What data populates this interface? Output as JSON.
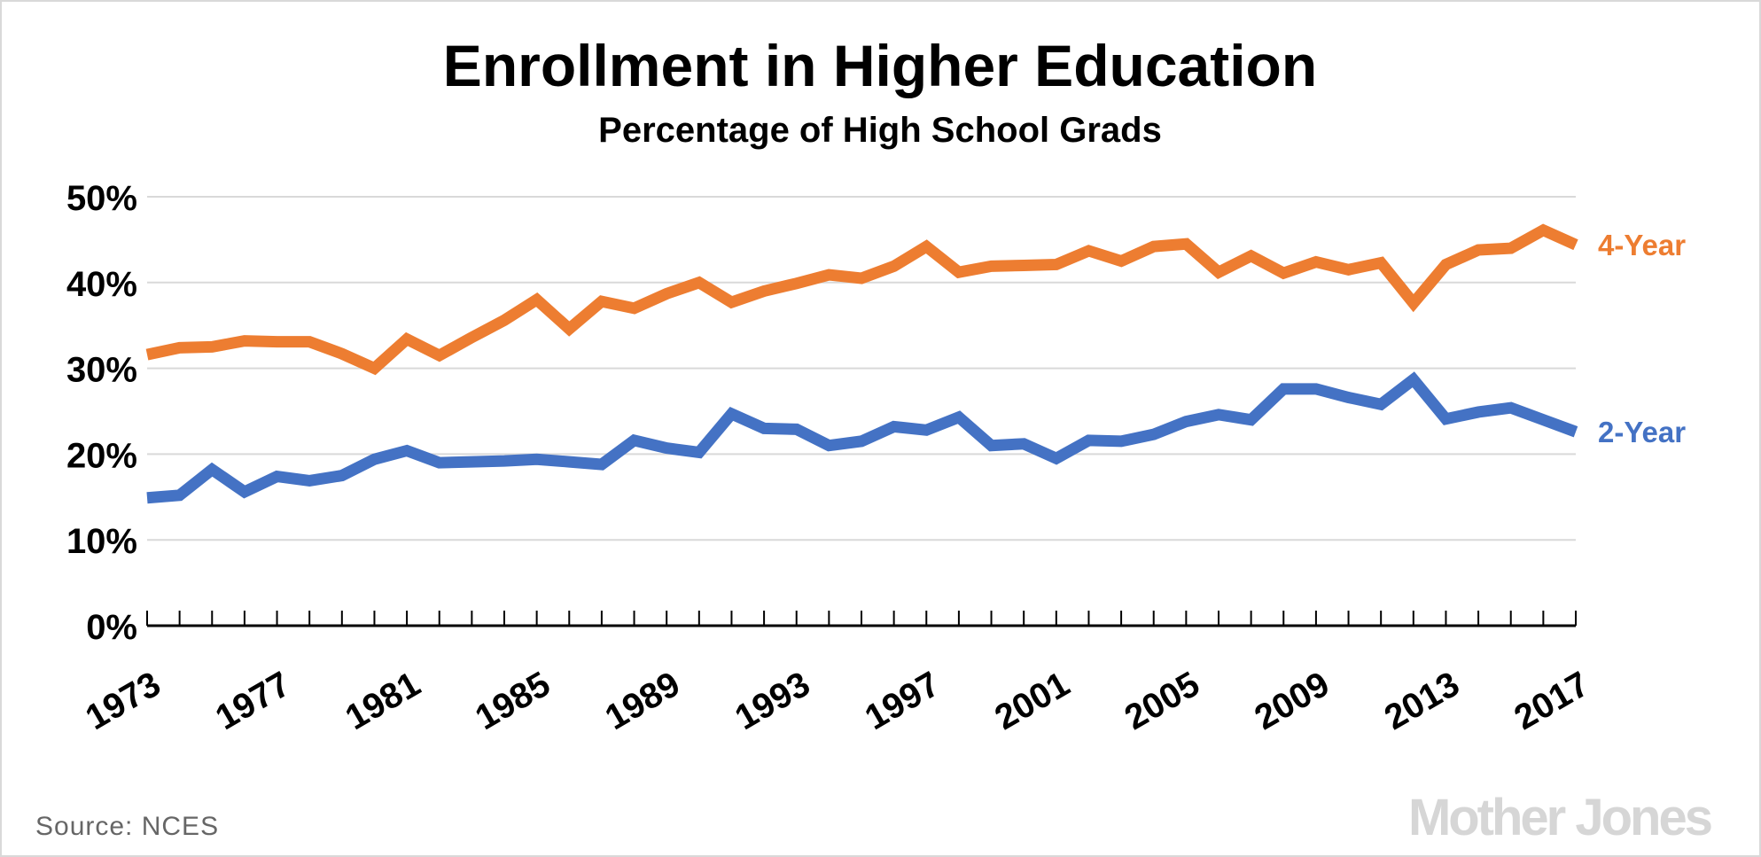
{
  "chart_data": {
    "type": "line",
    "title": "Enrollment in Higher Education",
    "subtitle": "Percentage of High School Grads",
    "xlabel": "",
    "ylabel": "",
    "ylim": [
      0,
      50
    ],
    "yticks": [
      "0%",
      "10%",
      "20%",
      "30%",
      "40%",
      "50%"
    ],
    "ytick_values": [
      0,
      10,
      20,
      30,
      40,
      50
    ],
    "xticks": [
      "1973",
      "1977",
      "1981",
      "1985",
      "1989",
      "1993",
      "1997",
      "2001",
      "2005",
      "2009",
      "2013",
      "2017"
    ],
    "grid": true,
    "x": [
      1973,
      1974,
      1975,
      1976,
      1977,
      1978,
      1979,
      1980,
      1981,
      1982,
      1983,
      1984,
      1985,
      1986,
      1987,
      1988,
      1989,
      1990,
      1991,
      1992,
      1993,
      1994,
      1995,
      1996,
      1997,
      1998,
      1999,
      2000,
      2001,
      2002,
      2003,
      2004,
      2005,
      2006,
      2007,
      2008,
      2009,
      2010,
      2011,
      2012,
      2013,
      2014,
      2015,
      2016,
      2017
    ],
    "series": [
      {
        "name": "4-Year",
        "color": "#ed7d31",
        "values": [
          31.6,
          32.4,
          32.5,
          33.2,
          33.1,
          33.1,
          31.7,
          30.0,
          33.4,
          31.5,
          33.6,
          35.6,
          38.0,
          34.6,
          37.8,
          37.0,
          38.7,
          40.0,
          37.7,
          39.0,
          39.9,
          40.9,
          40.5,
          41.9,
          44.2,
          41.2,
          41.9,
          42.0,
          42.1,
          43.7,
          42.5,
          44.2,
          44.5,
          41.2,
          43.1,
          41.1,
          42.4,
          41.5,
          42.3,
          37.6,
          42.1,
          43.8,
          44.0,
          46.1,
          44.4
        ]
      },
      {
        "name": "2-Year",
        "color": "#4472c4",
        "values": [
          14.9,
          15.2,
          18.2,
          15.6,
          17.4,
          16.9,
          17.5,
          19.4,
          20.4,
          19.0,
          19.1,
          19.2,
          19.4,
          19.1,
          18.8,
          21.6,
          20.7,
          20.2,
          24.7,
          23.0,
          22.9,
          21.0,
          21.5,
          23.2,
          22.8,
          24.3,
          21.0,
          21.2,
          19.5,
          21.6,
          21.5,
          22.3,
          23.8,
          24.6,
          24.0,
          27.6,
          27.6,
          26.6,
          25.8,
          28.7,
          24.1,
          24.9,
          25.4,
          24.0,
          22.6
        ]
      }
    ],
    "legend": "direct-labels-right",
    "source": "Source: NCES",
    "logo": "Mother Jones"
  }
}
